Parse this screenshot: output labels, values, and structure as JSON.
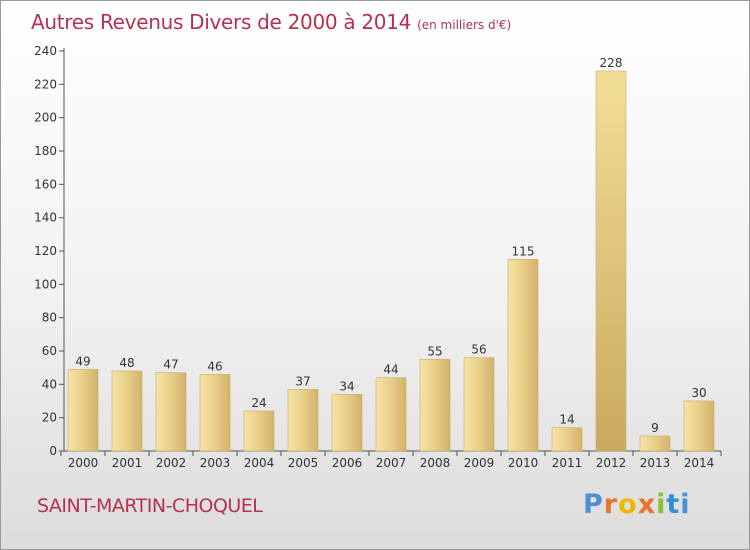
{
  "title": "Autres Revenus Divers de 2000 à 2014",
  "unit": "(en milliers d'€)",
  "commune": "SAINT-MARTIN-CHOQUEL",
  "brand": {
    "letters": [
      "P",
      "r",
      "o",
      "x",
      "i",
      "t",
      "i"
    ],
    "colors": [
      "#4a90d9",
      "#e8732a",
      "#f2b705",
      "#e8732a",
      "#8bbf3a",
      "#2f8fd6",
      "#4a90d9"
    ]
  },
  "chart_data": {
    "type": "bar",
    "categories": [
      "2000",
      "2001",
      "2002",
      "2003",
      "2004",
      "2005",
      "2006",
      "2007",
      "2008",
      "2009",
      "2010",
      "2011",
      "2012",
      "2013",
      "2014"
    ],
    "values": [
      49,
      48,
      47,
      46,
      24,
      37,
      34,
      44,
      55,
      56,
      115,
      14,
      228,
      9,
      30
    ],
    "ylim": [
      0,
      240
    ],
    "yticks": [
      0,
      20,
      40,
      60,
      80,
      100,
      120,
      140,
      160,
      180,
      200,
      220,
      240
    ],
    "grid": false,
    "bar_color": "#e3c77f"
  }
}
